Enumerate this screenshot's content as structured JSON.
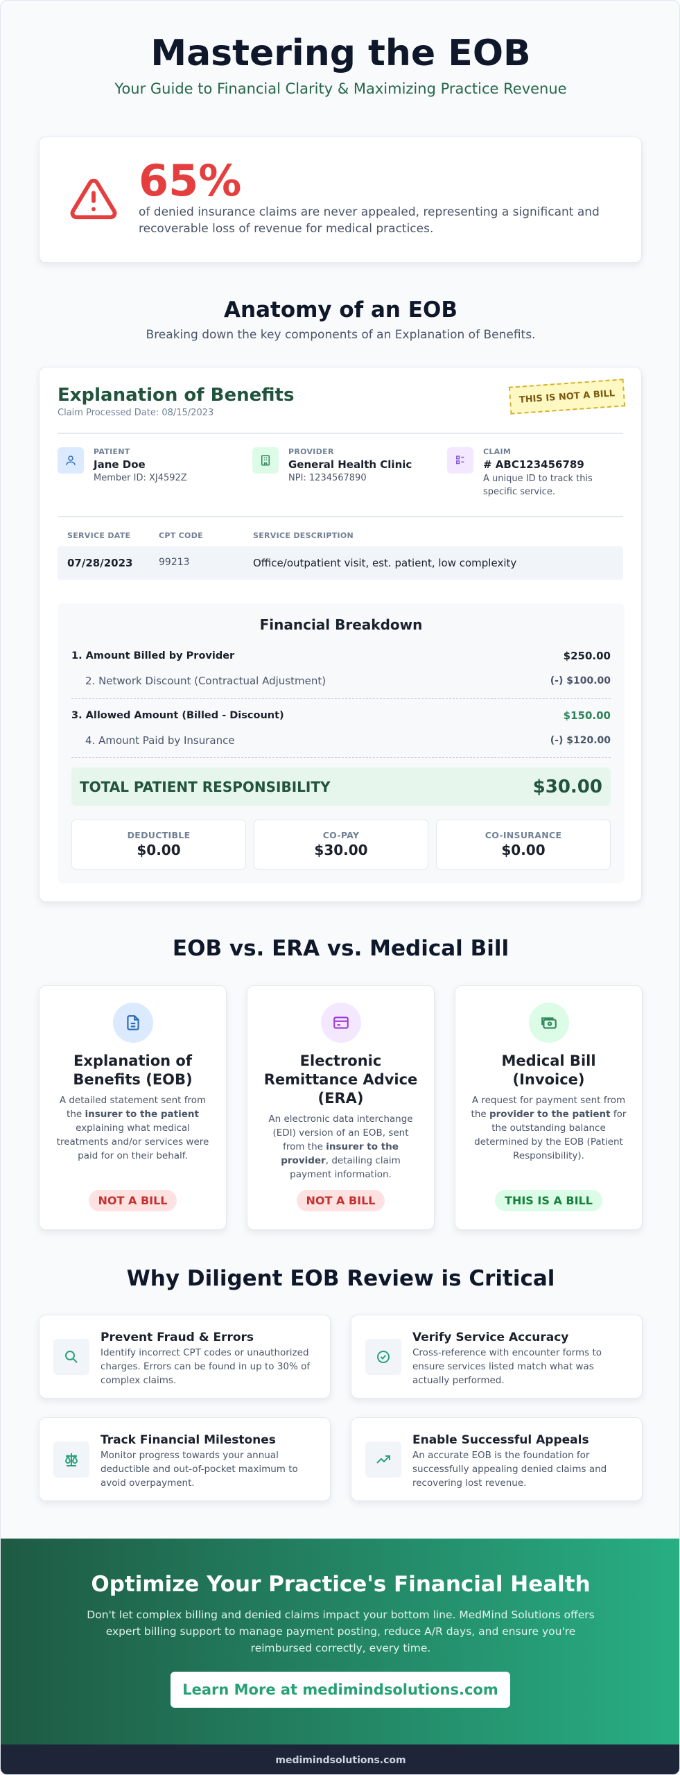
{
  "header": {
    "title": "Mastering the EOB",
    "subtitle": "Your Guide to Financial Clarity & Maximizing Practice Revenue"
  },
  "stat": {
    "value": "65%",
    "text": "of denied insurance claims are never appealed, representing a significant and recoverable loss of revenue for medical practices."
  },
  "anatomy": {
    "title": "Anatomy of an EOB",
    "subtitle": "Breaking down the key components of an Explanation of Benefits.",
    "eob": {
      "title": "Explanation of Benefits",
      "date": "Claim Processed Date: 08/15/2023",
      "stamp": "THIS IS NOT A BILL",
      "parties": [
        {
          "label": "PATIENT",
          "name": "Jane Doe",
          "detail": "Member ID: XJ4592Z"
        },
        {
          "label": "PROVIDER",
          "name": "General Health Clinic",
          "detail": "NPI: 1234567890"
        },
        {
          "label": "CLAIM",
          "name": "# ABC123456789",
          "detail": "A unique ID to track this specific service."
        }
      ],
      "table": {
        "headers": [
          "SERVICE DATE",
          "CPT CODE",
          "SERVICE DESCRIPTION"
        ],
        "rows": [
          [
            "07/28/2023",
            "99213",
            "Office/outpatient visit, est. patient, low complexity"
          ]
        ]
      },
      "breakdown": {
        "title": "Financial Breakdown",
        "rows": [
          {
            "label": "1. Amount Billed by Provider",
            "value": "$250.00"
          },
          {
            "label": "2. Network Discount (Contractual Adjustment)",
            "value": "(-) $100.00"
          },
          {
            "label": "3. Allowed Amount (Billed - Discount)",
            "value": "$150.00"
          },
          {
            "label": "4. Amount Paid by Insurance",
            "value": "(-) $120.00"
          }
        ],
        "total": {
          "label": "TOTAL PATIENT RESPONSIBILITY",
          "value": "$30.00"
        },
        "boxes": [
          {
            "label": "DEDUCTIBLE",
            "value": "$0.00"
          },
          {
            "label": "CO-PAY",
            "value": "$30.00"
          },
          {
            "label": "CO-INSURANCE",
            "value": "$0.00"
          }
        ]
      }
    }
  },
  "comparison": {
    "title": "EOB vs. ERA vs. Medical Bill",
    "cards": [
      {
        "title": "Explanation of Benefits (EOB)",
        "description": [
          "A detailed statement sent from the ",
          "insurer to the patient",
          " explaining what medical treatments and/or services were paid for on their behalf."
        ],
        "badge": "NOT A BILL"
      },
      {
        "title": "Electronic Remittance Advice (ERA)",
        "description": [
          "An electronic data interchange (EDI) version of an EOB, sent from the ",
          "insurer to the provider",
          ", detailing claim payment information."
        ],
        "badge": "NOT A BILL"
      },
      {
        "title": "Medical Bill (Invoice)",
        "description": [
          "A request for payment sent from the ",
          "provider to the patient",
          " for the outstanding balance determined by the EOB (Patient Responsibility)."
        ],
        "badge": "THIS IS A BILL"
      }
    ]
  },
  "review": {
    "title": "Why Diligent EOB Review is Critical",
    "items": [
      {
        "title": "Prevent Fraud & Errors",
        "text": "Identify incorrect CPT codes or unauthorized charges. Errors can be found in up to 30% of complex claims."
      },
      {
        "title": "Verify Service Accuracy",
        "text": "Cross-reference with encounter forms to ensure services listed match what was actually performed."
      },
      {
        "title": "Track Financial Milestones",
        "text": "Monitor progress towards your annual deductible and out-of-pocket maximum to avoid overpayment."
      },
      {
        "title": "Enable Successful Appeals",
        "text": "An accurate EOB is the foundation for successfully appealing denied claims and recovering lost revenue."
      }
    ]
  },
  "cta": {
    "title": "Optimize Your Practice's Financial Health",
    "text": "Don't let complex billing and denied claims impact your bottom line. MedMind Solutions offers expert billing support to manage payment posting, reduce A/R days, and ensure you're reimbursed correctly, every time.",
    "button": "Learn More at medimindsolutions.com"
  },
  "footer": "medimindsolutions.com"
}
